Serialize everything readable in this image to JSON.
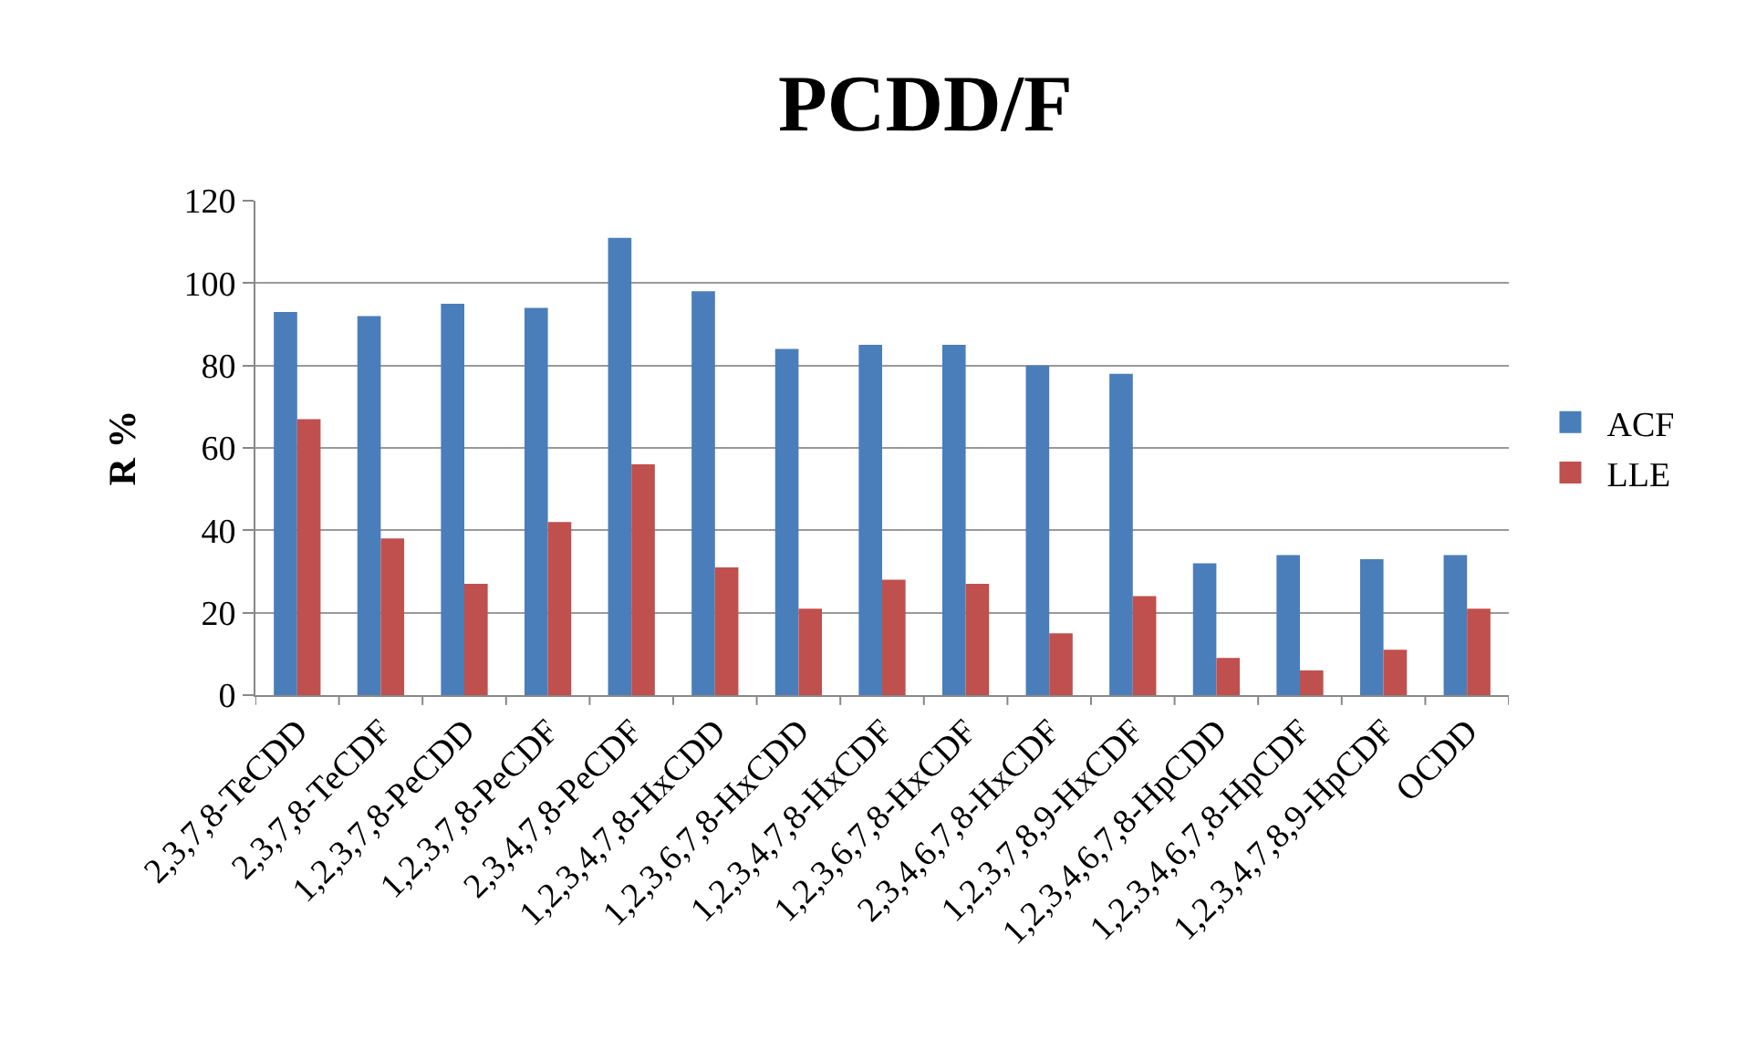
{
  "chart_data": {
    "type": "bar",
    "title": "PCDD/F",
    "ylabel": "R %",
    "categories": [
      "2,3,7,8-TeCDD",
      "2,3,7,8-TeCDF",
      "1,2,3,7,8-PeCDD",
      "1,2,3,7,8-PeCDF",
      "2,3,4,7,8-PeCDF",
      "1,2,3,4,7,8-HxCDD",
      "1,2,3,6,7,8-HxCDD",
      "1,2,3,4,7,8-HxCDF",
      "1,2,3,6,7,8-HxCDF",
      "2,3,4,6,7,8-HxCDF",
      "1,2,3,7,8,9-HxCDF",
      "1,2,3,4,6,7,8-HpCDD",
      "1,2,3,4,6,7,8-HpCDF",
      "1,2,3,4,7,8,9-HpCDF",
      "OCDD"
    ],
    "series": [
      {
        "name": "ACF",
        "color": "#4a7ebb",
        "values": [
          93,
          92,
          95,
          94,
          111,
          98,
          84,
          85,
          85,
          80,
          78,
          32,
          34,
          33,
          34
        ]
      },
      {
        "name": "LLE",
        "color": "#c0504d",
        "values": [
          67,
          38,
          27,
          42,
          56,
          31,
          21,
          28,
          27,
          15,
          24,
          9,
          6,
          11,
          21
        ]
      }
    ],
    "ylim": [
      0,
      120
    ],
    "yticks": [
      0,
      20,
      40,
      60,
      80,
      100,
      120
    ],
    "grid": "y",
    "legend": "right"
  }
}
